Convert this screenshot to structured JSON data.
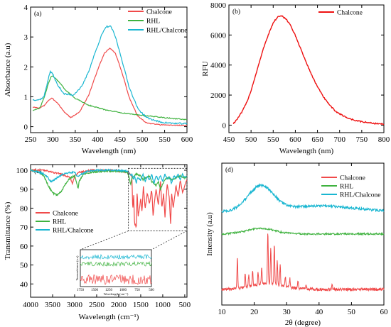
{
  "chart_data": [
    {
      "panel": "(a)",
      "type": "line",
      "xlabel": "Wavelength (nm)",
      "ylabel": "Absorbance (a.u)",
      "xlim": [
        250,
        600
      ],
      "ylim": [
        -0.2,
        4
      ],
      "xticks": [
        250,
        300,
        350,
        400,
        450,
        500,
        550,
        600
      ],
      "yticks": [
        0,
        1,
        2,
        3,
        4
      ],
      "legend": "top-right",
      "series": [
        {
          "name": "Chalcone",
          "color": "#f04a4a",
          "x": [
            255,
            270,
            280,
            290,
            298,
            310,
            325,
            340,
            360,
            380,
            400,
            415,
            428,
            440,
            455,
            470,
            490,
            510,
            540,
            570,
            600
          ],
          "y": [
            0.65,
            0.62,
            0.7,
            0.88,
            0.95,
            0.8,
            0.5,
            0.3,
            0.5,
            1.05,
            1.9,
            2.45,
            2.63,
            2.45,
            1.8,
            1.0,
            0.35,
            0.12,
            0.06,
            0.05,
            0.04
          ]
        },
        {
          "name": "RHL",
          "color": "#3fb23f",
          "x": [
            255,
            270,
            280,
            288,
            295,
            300,
            310,
            330,
            350,
            380,
            420,
            460,
            500,
            550,
            600
          ],
          "y": [
            0.55,
            0.6,
            0.95,
            1.35,
            1.65,
            1.7,
            1.55,
            1.2,
            0.95,
            0.72,
            0.55,
            0.45,
            0.38,
            0.3,
            0.23
          ]
        },
        {
          "name": "RHL/Chalcone",
          "color": "#19b6d1",
          "x": [
            255,
            270,
            280,
            288,
            294,
            300,
            310,
            325,
            345,
            365,
            380,
            395,
            410,
            420,
            430,
            440,
            455,
            470,
            490,
            510,
            540,
            570,
            600
          ],
          "y": [
            0.9,
            0.9,
            1.0,
            1.5,
            1.85,
            1.75,
            1.4,
            1.1,
            1.05,
            1.35,
            1.85,
            2.5,
            3.1,
            3.35,
            3.35,
            3.0,
            2.2,
            1.35,
            0.6,
            0.3,
            0.15,
            0.11,
            0.1
          ]
        }
      ]
    },
    {
      "panel": "(b)",
      "type": "line",
      "xlabel": "Wavelength (nm)",
      "ylabel": "RFU",
      "xlim": [
        450,
        800
      ],
      "ylim": [
        -500,
        8000
      ],
      "xticks": [
        450,
        500,
        550,
        600,
        650,
        700,
        750,
        800
      ],
      "yticks": [
        0,
        2000,
        4000,
        6000,
        8000
      ],
      "legend": "top-right",
      "series": [
        {
          "name": "Chalcone",
          "color": "#ee1111",
          "x": [
            460,
            470,
            480,
            490,
            500,
            510,
            520,
            530,
            540,
            550,
            560,
            570,
            580,
            590,
            600,
            610,
            620,
            630,
            640,
            650,
            660,
            670,
            680,
            690,
            700,
            720,
            740,
            760,
            780,
            800
          ],
          "y": [
            100,
            450,
            900,
            1500,
            2300,
            3300,
            4300,
            5300,
            6100,
            6800,
            7200,
            7250,
            7050,
            6600,
            5950,
            5250,
            4500,
            3800,
            3150,
            2550,
            2050,
            1600,
            1250,
            950,
            750,
            450,
            280,
            180,
            110,
            70
          ]
        }
      ]
    },
    {
      "panel": "(c)",
      "type": "line",
      "xlabel": "Wavelength (cm⁻¹)",
      "ylabel": "Transmittance (%)",
      "xlim": [
        4000,
        450
      ],
      "ylim": [
        33,
        103
      ],
      "xticks": [
        4000,
        3500,
        3000,
        2500,
        2000,
        1500,
        1000,
        500
      ],
      "yticks": [
        40,
        50,
        60,
        70,
        80,
        90,
        100
      ],
      "legend": "lower-left",
      "series": [
        {
          "name": "Chalcone",
          "color": "#f04a4a",
          "x": [
            4000,
            3700,
            3500,
            3300,
            3100,
            3050,
            3000,
            2950,
            2900,
            2600,
            2300,
            2100,
            1800,
            1700,
            1680,
            1660,
            1640,
            1600,
            1580,
            1560,
            1500,
            1470,
            1440,
            1400,
            1350,
            1300,
            1250,
            1220,
            1180,
            1150,
            1100,
            1050,
            1020,
            980,
            950,
            900,
            850,
            820,
            800,
            760,
            700,
            650,
            600,
            550,
            500,
            450
          ],
          "y": [
            100,
            100,
            99,
            98,
            96,
            93,
            97,
            98,
            99,
            100,
            100,
            100,
            99,
            97,
            78,
            88,
            72,
            70,
            90,
            75,
            85,
            78,
            92,
            80,
            88,
            82,
            90,
            76,
            85,
            90,
            82,
            94,
            80,
            88,
            75,
            93,
            85,
            71,
            88,
            80,
            92,
            86,
            95,
            88,
            92,
            95
          ]
        },
        {
          "name": "RHL",
          "color": "#3fb23f",
          "x": [
            4000,
            3800,
            3700,
            3600,
            3500,
            3400,
            3300,
            3200,
            3100,
            3000,
            2950,
            2920,
            2900,
            2850,
            2800,
            2600,
            2300,
            2000,
            1800,
            1750,
            1730,
            1700,
            1650,
            1600,
            1500,
            1450,
            1400,
            1300,
            1250,
            1150,
            1100,
            1050,
            1000,
            950,
            900,
            850,
            800,
            700,
            600,
            500,
            450
          ],
          "y": [
            100,
            99,
            97,
            92,
            88,
            87,
            89,
            93,
            96,
            97,
            93,
            90,
            94,
            96,
            98,
            99,
            99.5,
            99.5,
            99,
            95,
            92,
            96,
            97,
            98,
            97,
            95,
            96,
            97,
            94,
            92,
            94,
            90,
            93,
            95,
            96,
            96,
            95,
            96,
            97,
            96,
            97
          ]
        },
        {
          "name": "RHL/Chalcone",
          "color": "#19b6d1",
          "x": [
            4000,
            3800,
            3700,
            3600,
            3550,
            3500,
            3400,
            3300,
            3200,
            3000,
            2950,
            2920,
            2850,
            2700,
            2500,
            2000,
            1800,
            1720,
            1700,
            1660,
            1640,
            1600,
            1580,
            1500,
            1450,
            1400,
            1350,
            1300,
            1250,
            1200,
            1150,
            1100,
            1050,
            1000,
            950,
            900,
            850,
            800,
            750,
            700,
            650,
            600,
            550,
            500,
            450
          ],
          "y": [
            100,
            99,
            98,
            96,
            94,
            94.5,
            96,
            97.5,
            98.5,
            99,
            97,
            96.5,
            98,
            99.5,
            100,
            100,
            99.5,
            97,
            98,
            95,
            97,
            93,
            96,
            95,
            98,
            94,
            97,
            95,
            98,
            93,
            97,
            95,
            97,
            94,
            98,
            95,
            97,
            93,
            97,
            96,
            98,
            95,
            98,
            96,
            97
          ]
        }
      ],
      "inset": {
        "xlabel": "Wavelength (cm⁻¹)",
        "ylabel": "Transmittance (a.u)",
        "xlim": [
          1750,
          500
        ],
        "xticks": [
          1750,
          1500,
          1250,
          1000,
          750,
          500
        ]
      }
    },
    {
      "panel": "(d)",
      "type": "line",
      "xlabel": "2θ (degree)",
      "ylabel": "Intensity (a.u)",
      "xlim": [
        10,
        60
      ],
      "xticks": [
        10,
        20,
        30,
        40,
        50,
        60
      ],
      "legend": "top-right",
      "series": [
        {
          "name": "Chalcone",
          "color": "#f04a4a"
        },
        {
          "name": "RHL",
          "color": "#3fb23f"
        },
        {
          "name": "RHL/Chalcone",
          "color": "#19b6d1"
        }
      ]
    }
  ]
}
